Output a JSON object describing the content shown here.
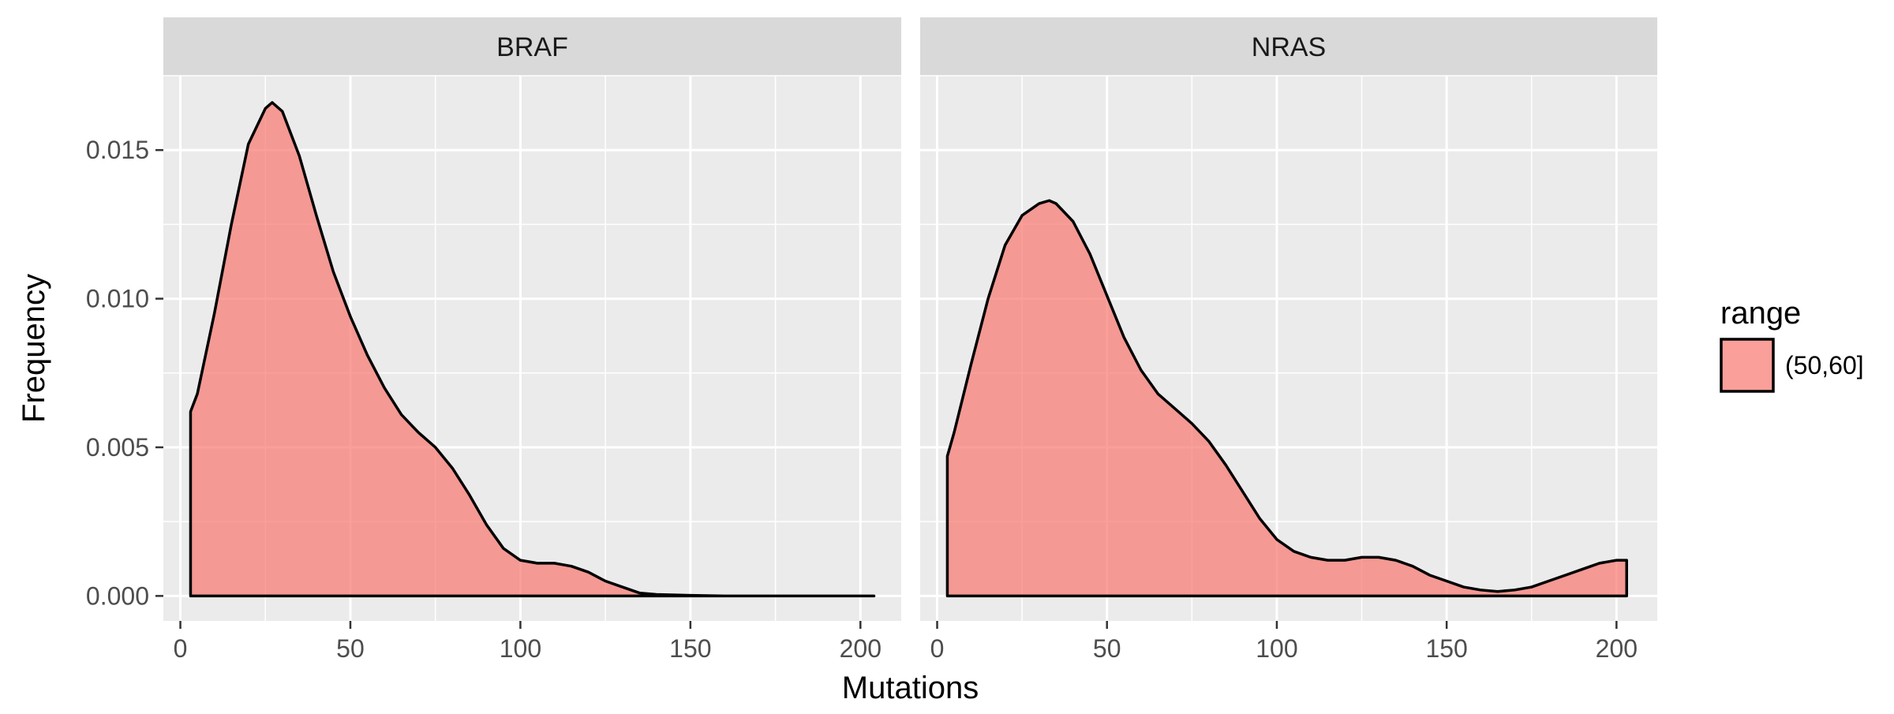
{
  "chart_data": {
    "type": "area",
    "xlabel": "Mutations",
    "ylabel": "Frequency",
    "xlim": [
      -5,
      212
    ],
    "ylim": [
      -0.00084,
      0.0175
    ],
    "x_ticks": [
      0,
      50,
      100,
      150,
      200
    ],
    "x_tick_labels": [
      "0",
      "50",
      "100",
      "150",
      "200"
    ],
    "y_ticks": [
      0,
      0.005,
      0.01,
      0.015
    ],
    "y_tick_labels": [
      "0.000",
      "0.005",
      "0.010",
      "0.015"
    ],
    "grid": true,
    "legend": {
      "title": "range",
      "placement": "right",
      "entries": [
        {
          "label": "(50,60]",
          "color": "#F8766D"
        }
      ]
    },
    "fill_color": "#F8766D",
    "fill_opacity": 0.7,
    "facets": [
      {
        "name": "BRAF",
        "x": [
          3,
          5,
          10,
          15,
          20,
          25,
          27,
          30,
          35,
          40,
          45,
          50,
          55,
          60,
          65,
          70,
          75,
          80,
          85,
          90,
          95,
          100,
          105,
          110,
          115,
          120,
          125,
          130,
          135,
          140,
          150,
          160,
          180,
          204
        ],
        "y": [
          0.0062,
          0.0068,
          0.0095,
          0.0125,
          0.0152,
          0.0164,
          0.0166,
          0.0163,
          0.0148,
          0.0128,
          0.0109,
          0.0094,
          0.0081,
          0.007,
          0.0061,
          0.0055,
          0.005,
          0.0043,
          0.0034,
          0.0024,
          0.0016,
          0.0012,
          0.0011,
          0.0011,
          0.001,
          0.0008,
          0.0005,
          0.0003,
          0.0001,
          5e-05,
          2e-05,
          0.0,
          0.0,
          0.0
        ]
      },
      {
        "name": "NRAS",
        "x": [
          3,
          5,
          10,
          15,
          20,
          25,
          30,
          33,
          35,
          40,
          45,
          50,
          55,
          60,
          65,
          70,
          75,
          80,
          85,
          90,
          95,
          100,
          105,
          110,
          115,
          120,
          125,
          130,
          135,
          140,
          145,
          150,
          155,
          160,
          165,
          170,
          175,
          180,
          185,
          190,
          195,
          200,
          203
        ],
        "y": [
          0.0047,
          0.0055,
          0.0078,
          0.01,
          0.0118,
          0.0128,
          0.0132,
          0.0133,
          0.0132,
          0.0126,
          0.0115,
          0.0101,
          0.0087,
          0.0076,
          0.0068,
          0.0063,
          0.0058,
          0.0052,
          0.0044,
          0.0035,
          0.0026,
          0.0019,
          0.0015,
          0.0013,
          0.0012,
          0.0012,
          0.0013,
          0.0013,
          0.0012,
          0.001,
          0.0007,
          0.0005,
          0.0003,
          0.0002,
          0.00015,
          0.0002,
          0.0003,
          0.0005,
          0.0007,
          0.0009,
          0.0011,
          0.0012,
          0.0012
        ]
      }
    ]
  }
}
